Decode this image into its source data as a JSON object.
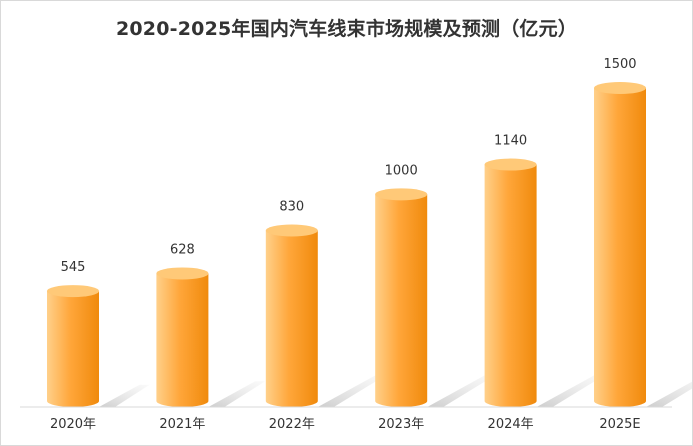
{
  "chart_data": {
    "type": "bar",
    "title": "2020-2025年国内汽车线束市场规模及预测（亿元）",
    "categories": [
      "2020年",
      "2021年",
      "2022年",
      "2023年",
      "2024年",
      "2025E"
    ],
    "values": [
      545,
      628,
      830,
      1000,
      1140,
      1500
    ],
    "value_labels": [
      "545",
      "628",
      "830",
      "1000",
      "1140",
      "1500"
    ],
    "xlabel": "",
    "ylabel": "",
    "ylim": [
      0,
      1500
    ],
    "grid": false,
    "legend": "none",
    "bar_style": "3d-cylinder",
    "colors": {
      "bar_light": "#ffd08a",
      "bar_main": "#ffa63a",
      "bar_dark": "#f08a0c",
      "bar_top": "#ffc978",
      "shadow": "#cfcfcf"
    }
  }
}
